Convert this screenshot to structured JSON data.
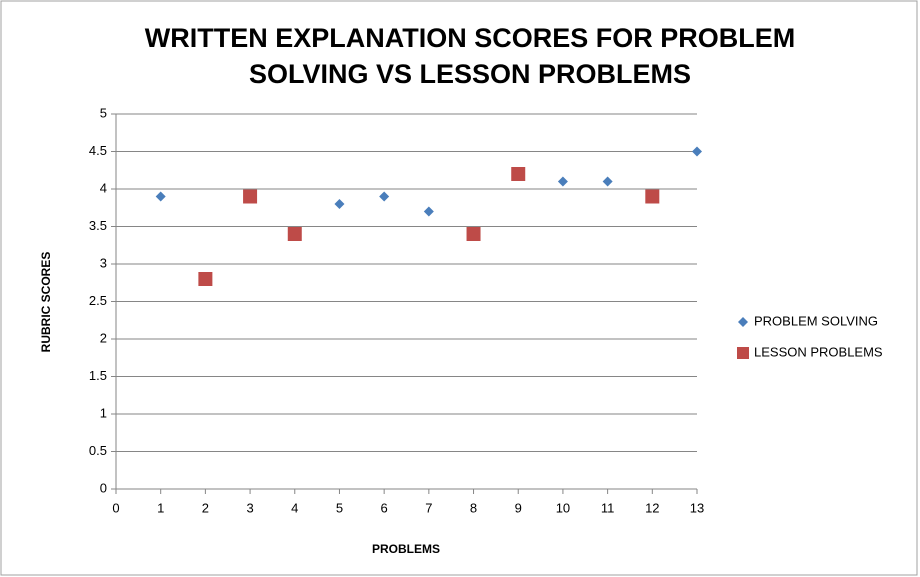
{
  "chart_data": {
    "type": "scatter",
    "title": [
      "WRITTEN EXPLANATION SCORES FOR PROBLEM",
      "SOLVING VS LESSON PROBLEMS"
    ],
    "x_label": "PROBLEMS",
    "y_label": "RUBRIC SCORES",
    "series": [
      {
        "name": "PROBLEM SOLVING",
        "color": "#4a7ebb",
        "marker": "diamond",
        "x": [
          1,
          5,
          6,
          7,
          10,
          11,
          13
        ],
        "values": [
          3.9,
          3.8,
          3.9,
          3.7,
          4.1,
          4.1,
          4.5
        ]
      },
      {
        "name": "LESSON PROBLEMS",
        "color": "#be4b48",
        "marker": "square",
        "x": [
          2,
          3,
          4,
          8,
          9,
          12
        ],
        "values": [
          2.8,
          3.9,
          3.4,
          3.4,
          4.2,
          3.9
        ]
      }
    ],
    "xlim": [
      0,
      13
    ],
    "xticks": [
      0,
      1,
      2,
      3,
      4,
      5,
      6,
      7,
      8,
      9,
      10,
      11,
      12,
      13
    ],
    "ylim": [
      0,
      5
    ],
    "yticks": [
      0,
      0.5,
      1,
      1.5,
      2,
      2.5,
      3,
      3.5,
      4,
      4.5,
      5
    ],
    "grid": true,
    "legend": "right"
  }
}
